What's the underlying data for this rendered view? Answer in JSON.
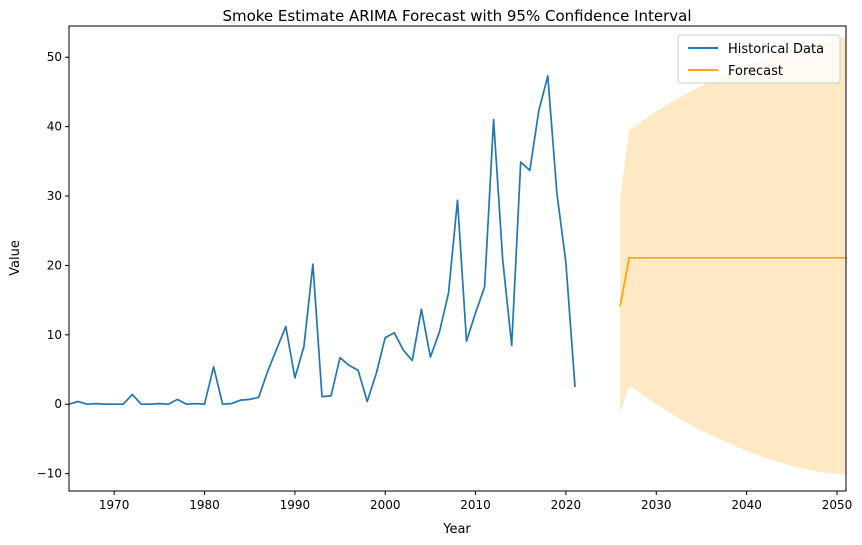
{
  "chart_data": {
    "type": "line",
    "title": "Smoke Estimate ARIMA Forecast with 95% Confidence Interval",
    "xlabel": "Year",
    "ylabel": "Value",
    "xlim": [
      1965,
      2051
    ],
    "ylim": [
      -12.5,
      54.5
    ],
    "x_ticks": [
      1970,
      1980,
      1990,
      2000,
      2010,
      2020,
      2030,
      2040,
      2050
    ],
    "y_ticks": [
      -10,
      0,
      10,
      20,
      30,
      40,
      50
    ],
    "grid": false,
    "legend_position": "top-right",
    "series": [
      {
        "name": "Historical Data",
        "color": "#1f77b4",
        "x": [
          1965,
          1966,
          1967,
          1968,
          1969,
          1970,
          1971,
          1972,
          1973,
          1974,
          1975,
          1976,
          1977,
          1978,
          1979,
          1980,
          1981,
          1982,
          1983,
          1984,
          1985,
          1986,
          1987,
          1988,
          1989,
          1990,
          1991,
          1992,
          1993,
          1994,
          1995,
          1996,
          1997,
          1998,
          1999,
          2000,
          2001,
          2002,
          2003,
          2004,
          2005,
          2006,
          2007,
          2008,
          2009,
          2010,
          2011,
          2012,
          2013,
          2014,
          2015,
          2016,
          2017,
          2018,
          2019,
          2020,
          2021
        ],
        "values": [
          0.0,
          0.4,
          0.0,
          0.1,
          0.0,
          0.0,
          0.0,
          1.4,
          0.0,
          0.0,
          0.1,
          0.0,
          0.7,
          0.0,
          0.1,
          0.0,
          5.4,
          0.0,
          0.1,
          0.6,
          0.7,
          1.0,
          4.8,
          8.0,
          11.2,
          3.8,
          8.3,
          20.2,
          1.1,
          1.2,
          6.7,
          5.6,
          4.9,
          0.4,
          4.4,
          9.6,
          10.3,
          7.8,
          6.3,
          13.7,
          6.8,
          10.4,
          16.0,
          29.4,
          9.1,
          13.2,
          16.9,
          41.0,
          20.8,
          8.5,
          34.9,
          33.7,
          42.3,
          47.3,
          30.4,
          20.4,
          2.5
        ]
      },
      {
        "name": "Forecast",
        "color": "#ffa500",
        "x": [
          2026,
          2027,
          2028,
          2029,
          2030,
          2031,
          2032,
          2033,
          2034,
          2035,
          2036,
          2037,
          2038,
          2039,
          2040,
          2041,
          2042,
          2043,
          2044,
          2045,
          2046,
          2047,
          2048,
          2049,
          2050,
          2051
        ],
        "values": [
          14.1,
          21.1,
          21.1,
          21.1,
          21.1,
          21.1,
          21.1,
          21.1,
          21.1,
          21.1,
          21.1,
          21.1,
          21.1,
          21.1,
          21.1,
          21.1,
          21.1,
          21.1,
          21.1,
          21.1,
          21.1,
          21.1,
          21.1,
          21.1,
          21.1,
          21.1
        ]
      }
    ],
    "confidence_interval": {
      "color": "#ffe8c4",
      "x": [
        2026,
        2027,
        2028,
        2029,
        2030,
        2031,
        2032,
        2033,
        2034,
        2035,
        2036,
        2037,
        2038,
        2039,
        2040,
        2041,
        2042,
        2043,
        2044,
        2045,
        2046,
        2047,
        2048,
        2049,
        2050,
        2051
      ],
      "lower": [
        -1.3,
        2.7,
        1.8,
        0.9,
        0.0,
        -0.8,
        -1.6,
        -2.4,
        -3.1,
        -3.8,
        -4.4,
        -5.0,
        -5.6,
        -6.2,
        -6.7,
        -7.2,
        -7.7,
        -8.1,
        -8.5,
        -8.9,
        -9.2,
        -9.5,
        -9.7,
        -9.9,
        -10.0,
        -10.1
      ],
      "upper": [
        29.5,
        39.5,
        40.4,
        41.3,
        42.2,
        43.0,
        43.8,
        44.5,
        45.2,
        45.9,
        46.5,
        47.1,
        47.7,
        48.3,
        48.8,
        49.3,
        49.8,
        50.2,
        50.6,
        51.0,
        51.4,
        51.7,
        52.0,
        52.3,
        52.6,
        52.9
      ]
    }
  }
}
